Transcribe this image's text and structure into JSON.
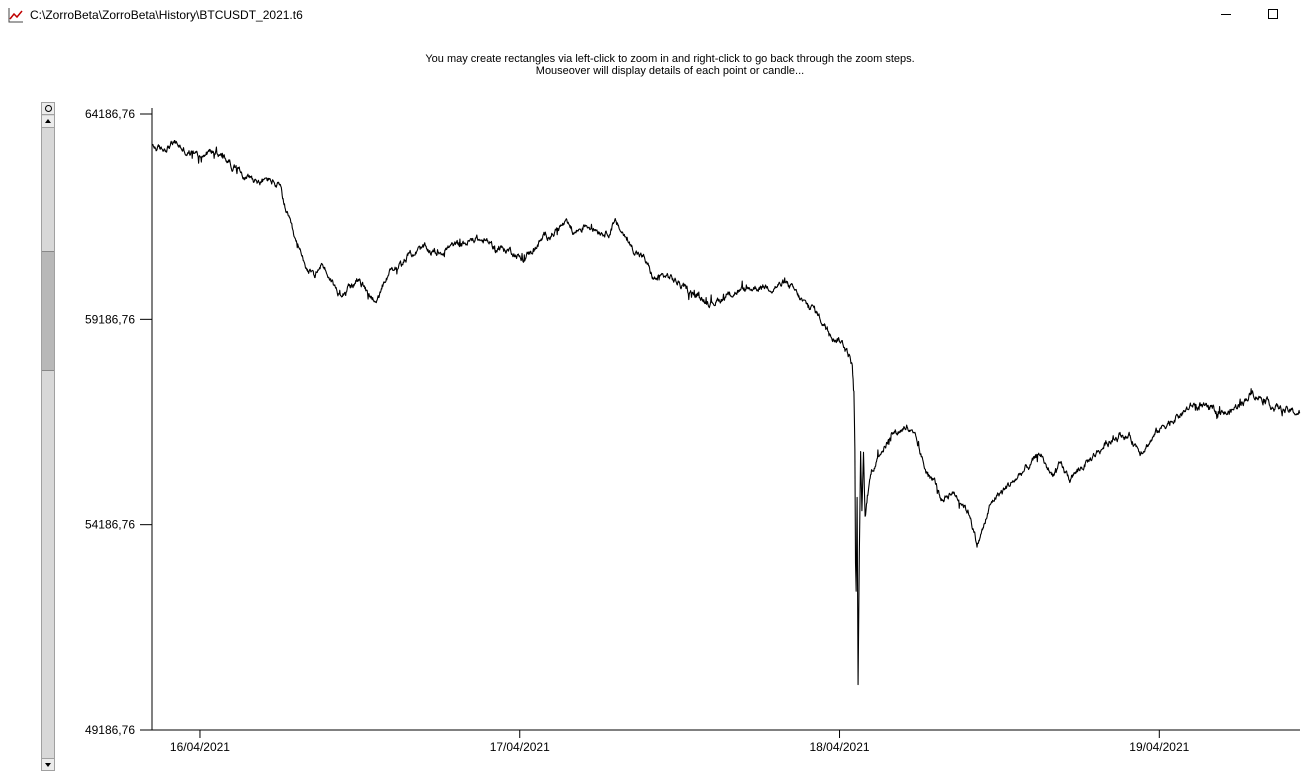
{
  "window": {
    "title": "C:\\ZorroBeta\\ZorroBeta\\History\\BTCUSDT_2021.t6"
  },
  "hints": {
    "line1": "You may create rectangles via left-click to zoom in and right-click to go back through the zoom steps.",
    "line2": "Mouseover will display details of each point or candle..."
  },
  "colors": {
    "series": "#000000",
    "background": "#ffffff"
  },
  "icons": {
    "app": "line-chart-icon",
    "minimize": "minimize-icon",
    "maximize": "maximize-icon"
  },
  "chart_data": {
    "type": "line",
    "title": "",
    "xlabel": "",
    "ylabel": "",
    "ylim": [
      49186.76,
      64186.76
    ],
    "y_ticks": [
      "64186,76",
      "59186,76",
      "54186,76",
      "49186,76"
    ],
    "x_ticks": [
      "16/04/2021",
      "17/04/2021",
      "18/04/2021",
      "19/04/2021"
    ],
    "x_tick_positions_days": [
      0,
      1,
      2,
      3
    ],
    "xlim_days": [
      -0.15,
      3.44
    ],
    "grid": false,
    "series": [
      {
        "name": "",
        "values": [
          [
            -0.15,
            63400
          ],
          [
            -0.12,
            63300
          ],
          [
            -0.08,
            63500
          ],
          [
            -0.04,
            63250
          ],
          [
            0.0,
            63150
          ],
          [
            0.04,
            63300
          ],
          [
            0.08,
            63100
          ],
          [
            0.12,
            62800
          ],
          [
            0.16,
            62650
          ],
          [
            0.19,
            62500
          ],
          [
            0.22,
            62600
          ],
          [
            0.25,
            62400
          ],
          [
            0.27,
            61800
          ],
          [
            0.3,
            61000
          ],
          [
            0.33,
            60500
          ],
          [
            0.36,
            60150
          ],
          [
            0.38,
            60550
          ],
          [
            0.4,
            60300
          ],
          [
            0.43,
            59850
          ],
          [
            0.46,
            59950
          ],
          [
            0.49,
            60150
          ],
          [
            0.51,
            60000
          ],
          [
            0.53,
            59750
          ],
          [
            0.56,
            59700
          ],
          [
            0.58,
            60050
          ],
          [
            0.6,
            60400
          ],
          [
            0.63,
            60500
          ],
          [
            0.66,
            60800
          ],
          [
            0.7,
            60900
          ],
          [
            0.74,
            60800
          ],
          [
            0.78,
            60950
          ],
          [
            0.82,
            61000
          ],
          [
            0.86,
            61150
          ],
          [
            0.9,
            61050
          ],
          [
            0.94,
            60900
          ],
          [
            0.98,
            60850
          ],
          [
            1.01,
            60600
          ],
          [
            1.04,
            60900
          ],
          [
            1.08,
            61200
          ],
          [
            1.11,
            61350
          ],
          [
            1.14,
            61500
          ],
          [
            1.17,
            61300
          ],
          [
            1.21,
            61500
          ],
          [
            1.24,
            61400
          ],
          [
            1.27,
            61300
          ],
          [
            1.3,
            61500
          ],
          [
            1.33,
            61200
          ],
          [
            1.35,
            60950
          ],
          [
            1.39,
            60650
          ],
          [
            1.42,
            60150
          ],
          [
            1.46,
            60250
          ],
          [
            1.5,
            60050
          ],
          [
            1.53,
            59850
          ],
          [
            1.57,
            59700
          ],
          [
            1.6,
            59600
          ],
          [
            1.63,
            59700
          ],
          [
            1.67,
            59850
          ],
          [
            1.71,
            59900
          ],
          [
            1.75,
            60000
          ],
          [
            1.79,
            60000
          ],
          [
            1.83,
            60050
          ],
          [
            1.86,
            59850
          ],
          [
            1.89,
            59550
          ],
          [
            1.92,
            59450
          ],
          [
            1.94,
            59200
          ],
          [
            1.96,
            59000
          ],
          [
            1.98,
            58800
          ],
          [
            2.0,
            58700
          ],
          [
            2.02,
            58500
          ],
          [
            2.03,
            58300
          ],
          [
            2.04,
            58050
          ],
          [
            2.045,
            57400
          ],
          [
            2.048,
            56000
          ],
          [
            2.05,
            53200
          ],
          [
            2.052,
            52500
          ],
          [
            2.055,
            54800
          ],
          [
            2.058,
            50200
          ],
          [
            2.062,
            53500
          ],
          [
            2.066,
            55900
          ],
          [
            2.07,
            54500
          ],
          [
            2.075,
            55800
          ],
          [
            2.08,
            54300
          ],
          [
            2.09,
            55000
          ],
          [
            2.1,
            55500
          ],
          [
            2.13,
            56000
          ],
          [
            2.17,
            56400
          ],
          [
            2.21,
            56600
          ],
          [
            2.24,
            56200
          ],
          [
            2.27,
            55500
          ],
          [
            2.3,
            55200
          ],
          [
            2.32,
            54800
          ],
          [
            2.35,
            55000
          ],
          [
            2.38,
            54800
          ],
          [
            2.41,
            54400
          ],
          [
            2.43,
            53700
          ],
          [
            2.45,
            54100
          ],
          [
            2.47,
            54600
          ],
          [
            2.49,
            54900
          ],
          [
            2.51,
            55000
          ],
          [
            2.55,
            55300
          ],
          [
            2.59,
            55600
          ],
          [
            2.63,
            55900
          ],
          [
            2.66,
            55400
          ],
          [
            2.69,
            55600
          ],
          [
            2.72,
            55300
          ],
          [
            2.76,
            55600
          ],
          [
            2.8,
            55900
          ],
          [
            2.84,
            56200
          ],
          [
            2.88,
            56400
          ],
          [
            2.91,
            56300
          ],
          [
            2.94,
            56000
          ],
          [
            2.97,
            56200
          ],
          [
            3.0,
            56500
          ],
          [
            3.03,
            56700
          ],
          [
            3.07,
            56900
          ],
          [
            3.11,
            57100
          ],
          [
            3.15,
            57000
          ],
          [
            3.19,
            56900
          ],
          [
            3.22,
            56900
          ],
          [
            3.26,
            57200
          ],
          [
            3.29,
            57400
          ],
          [
            3.32,
            57300
          ],
          [
            3.36,
            57050
          ],
          [
            3.4,
            56950
          ],
          [
            3.44,
            56900
          ]
        ]
      }
    ]
  }
}
